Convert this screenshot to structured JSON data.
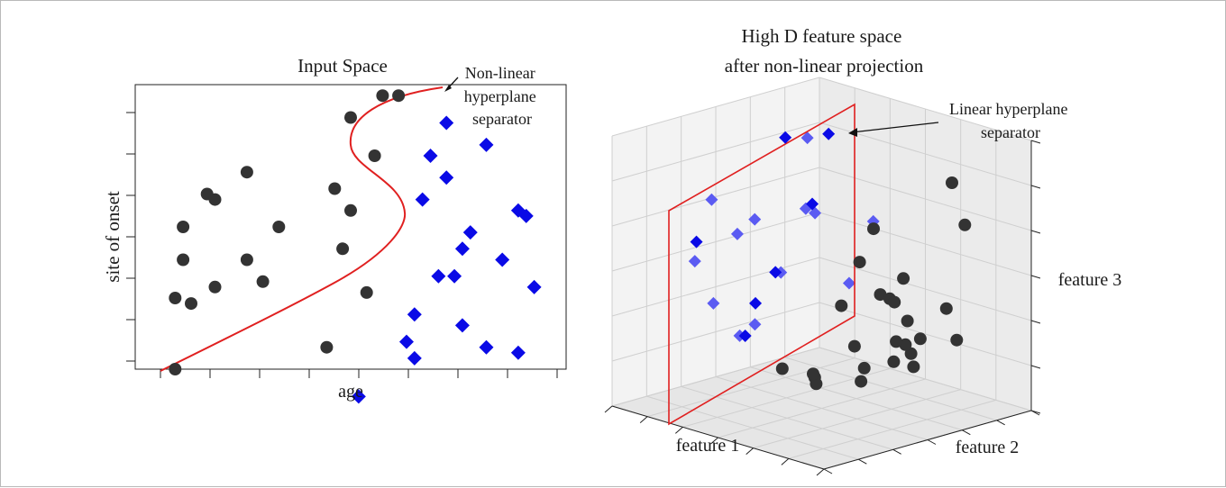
{
  "left_panel": {
    "title": "Input Space",
    "xlabel": "age",
    "ylabel": "site of onset",
    "annotation_lines": [
      "Non-linear",
      "hyperplane",
      "separator"
    ],
    "circles": [
      [
        0.35,
        0.4
      ],
      [
        0.35,
        0.53
      ],
      [
        0.36,
        0.6
      ],
      [
        0.36,
        0.66
      ],
      [
        0.37,
        0.52
      ],
      [
        0.39,
        0.72
      ],
      [
        0.4,
        0.55
      ],
      [
        0.4,
        0.71
      ],
      [
        0.44,
        0.6
      ],
      [
        0.44,
        0.76
      ],
      [
        0.46,
        0.56
      ],
      [
        0.48,
        0.66
      ],
      [
        0.54,
        0.44
      ],
      [
        0.55,
        0.73
      ],
      [
        0.56,
        0.62
      ],
      [
        0.57,
        0.69
      ],
      [
        0.57,
        0.86
      ],
      [
        0.59,
        0.54
      ],
      [
        0.6,
        0.79
      ],
      [
        0.61,
        0.9
      ],
      [
        0.63,
        0.9
      ]
    ],
    "diamonds": [
      [
        0.58,
        0.35
      ],
      [
        0.64,
        0.45
      ],
      [
        0.65,
        0.5
      ],
      [
        0.65,
        0.42
      ],
      [
        0.66,
        0.71
      ],
      [
        0.67,
        0.79
      ],
      [
        0.68,
        0.57
      ],
      [
        0.69,
        0.75
      ],
      [
        0.69,
        0.85
      ],
      [
        0.7,
        0.57
      ],
      [
        0.71,
        0.62
      ],
      [
        0.71,
        0.48
      ],
      [
        0.72,
        0.65
      ],
      [
        0.74,
        0.44
      ],
      [
        0.74,
        0.81
      ],
      [
        0.76,
        0.6
      ],
      [
        0.78,
        0.69
      ],
      [
        0.78,
        0.43
      ],
      [
        0.79,
        0.68
      ],
      [
        0.8,
        0.55
      ]
    ]
  },
  "right_panel": {
    "title_lines": [
      "High D feature space",
      "after non-linear projection"
    ],
    "xlabel": "feature 1",
    "ylabel": "feature 2",
    "zlabel": "feature 3",
    "annotation_lines": [
      "Linear hyperplane",
      "separator"
    ],
    "diamonds": [
      [
        0.12,
        0.92,
        0.88
      ],
      [
        0.11,
        0.85,
        0.62
      ],
      [
        0.05,
        0.78,
        0.88
      ],
      [
        0.11,
        0.28,
        0.6
      ],
      [
        0.14,
        0.45,
        0.6
      ],
      [
        0.12,
        0.56,
        0.3
      ],
      [
        0.08,
        0.7,
        0.38
      ],
      [
        0.11,
        0.52,
        0.18
      ],
      [
        0.19,
        0.78,
        0.62
      ],
      [
        0.24,
        0.56,
        0.45
      ],
      [
        0.18,
        0.42,
        0.22
      ],
      [
        0.29,
        0.38,
        0.3
      ],
      [
        0.19,
        0.28,
        0.38
      ],
      [
        0.16,
        0.22,
        0.55
      ],
      [
        0.27,
        0.4,
        0.7
      ],
      [
        0.22,
        0.24,
        0.8
      ],
      [
        0.25,
        0.68,
        0.95
      ],
      [
        0.35,
        0.9,
        0.6
      ],
      [
        0.38,
        0.75,
        0.4
      ],
      [
        0.3,
        0.62,
        0.7
      ]
    ],
    "circles": [
      [
        0.78,
        0.6,
        0.55
      ],
      [
        0.84,
        0.84,
        0.72
      ],
      [
        0.76,
        0.86,
        0.86
      ],
      [
        0.62,
        0.62,
        0.7
      ],
      [
        0.65,
        0.52,
        0.6
      ],
      [
        0.69,
        0.58,
        0.47
      ],
      [
        0.6,
        0.72,
        0.4
      ],
      [
        0.68,
        0.66,
        0.42
      ],
      [
        0.65,
        0.43,
        0.45
      ],
      [
        0.78,
        0.62,
        0.38
      ],
      [
        0.81,
        0.78,
        0.4
      ],
      [
        0.84,
        0.8,
        0.28
      ],
      [
        0.72,
        0.7,
        0.22
      ],
      [
        0.62,
        0.85,
        0.22
      ],
      [
        0.53,
        0.62,
        0.22
      ],
      [
        0.55,
        0.85,
        0.18
      ],
      [
        0.6,
        0.74,
        0.15
      ],
      [
        0.58,
        0.6,
        0.1
      ],
      [
        0.48,
        0.72,
        0.1
      ],
      [
        0.4,
        0.56,
        0.08
      ],
      [
        0.33,
        0.64,
        0.02
      ],
      [
        0.4,
        0.4,
        0.15
      ],
      [
        0.45,
        0.5,
        0.12
      ],
      [
        0.54,
        0.9,
        0.08
      ],
      [
        0.65,
        0.7,
        0.25
      ]
    ]
  },
  "colors": {
    "circle": "#333333",
    "diamond_front": "#0a0ae6",
    "diamond_back": "#5b5bf2",
    "separator": "#e02020",
    "axis": "#222222",
    "grid": "#cfcfcf",
    "pane_left": "#f3f3f3",
    "pane_right": "#ebebeb",
    "pane_floor": "#e6e6e6"
  }
}
